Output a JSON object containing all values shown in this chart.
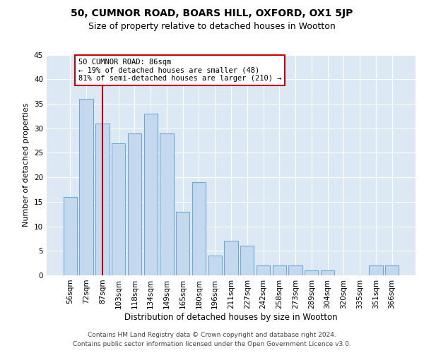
{
  "title1": "50, CUMNOR ROAD, BOARS HILL, OXFORD, OX1 5JP",
  "title2": "Size of property relative to detached houses in Wootton",
  "xlabel": "Distribution of detached houses by size in Wootton",
  "ylabel": "Number of detached properties",
  "categories": [
    "56sqm",
    "72sqm",
    "87sqm",
    "103sqm",
    "118sqm",
    "134sqm",
    "149sqm",
    "165sqm",
    "180sqm",
    "196sqm",
    "211sqm",
    "227sqm",
    "242sqm",
    "258sqm",
    "273sqm",
    "289sqm",
    "304sqm",
    "320sqm",
    "335sqm",
    "351sqm",
    "366sqm"
  ],
  "values": [
    16,
    36,
    31,
    27,
    29,
    33,
    29,
    13,
    19,
    4,
    7,
    6,
    2,
    2,
    2,
    1,
    1,
    0,
    0,
    2,
    2
  ],
  "bar_color": "#c5d9ee",
  "bar_edge_color": "#6aaad4",
  "highlight_index": 2,
  "highlight_color": "#cc0000",
  "annotation_text": "50 CUMNOR ROAD: 86sqm\n← 19% of detached houses are smaller (48)\n81% of semi-detached houses are larger (210) →",
  "annotation_box_color": "#ffffff",
  "annotation_box_edge": "#cc0000",
  "ylim": [
    0,
    45
  ],
  "yticks": [
    0,
    5,
    10,
    15,
    20,
    25,
    30,
    35,
    40,
    45
  ],
  "background_color": "#dce9f5",
  "footer1": "Contains HM Land Registry data © Crown copyright and database right 2024.",
  "footer2": "Contains public sector information licensed under the Open Government Licence v3.0.",
  "title1_fontsize": 10,
  "title2_fontsize": 9,
  "xlabel_fontsize": 8.5,
  "ylabel_fontsize": 8,
  "tick_fontsize": 7.5,
  "annotation_fontsize": 7.5,
  "footer_fontsize": 6.5
}
